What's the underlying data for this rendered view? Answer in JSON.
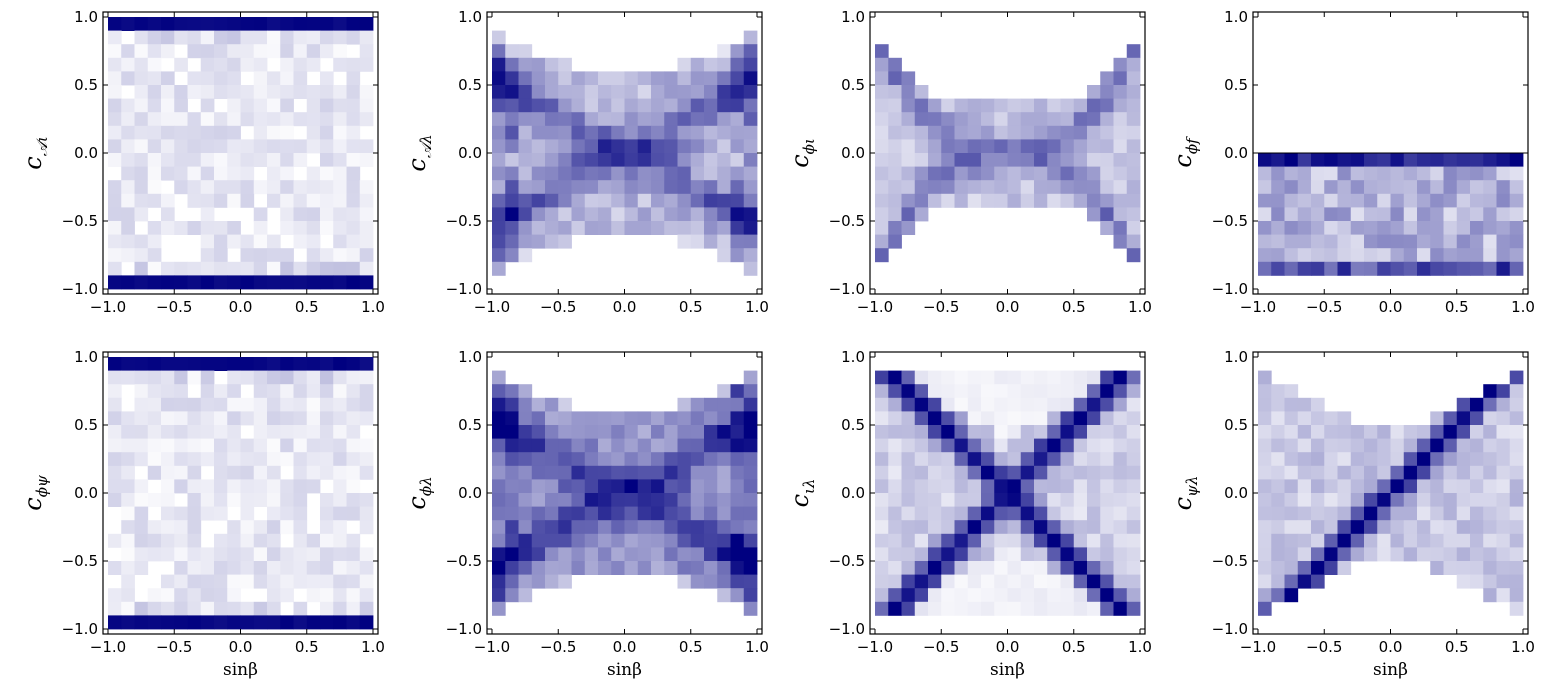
{
  "chart_data": {
    "type": "heatmap",
    "colormap": "white-to-navy",
    "x_range": [
      -1.0,
      1.0
    ],
    "y_range": [
      -1.0,
      1.0
    ],
    "bins": 20,
    "xticks": [
      "−1.0",
      "−0.5",
      "0.0",
      "0.5",
      "1.0"
    ],
    "yticks": [
      "1.0",
      "0.5",
      "0.0",
      "−0.5",
      "−1.0"
    ],
    "xlabel": "sinβ",
    "panels": [
      {
        "name": "c_A_iota",
        "ylabel": "c",
        "ylabel_sub": "𝒜ι",
        "pattern": "edges"
      },
      {
        "name": "c_A_lambda",
        "ylabel": "c",
        "ylabel_sub": "𝒜λ",
        "pattern": "bowtie"
      },
      {
        "name": "c_phi_iota",
        "ylabel": "c",
        "ylabel_sub": "ϕι",
        "pattern": "band"
      },
      {
        "name": "c_phi_f",
        "ylabel": "c",
        "ylabel_sub": "ϕf",
        "pattern": "lower"
      },
      {
        "name": "c_phi_psi",
        "ylabel": "c",
        "ylabel_sub": "ϕψ",
        "pattern": "edges"
      },
      {
        "name": "c_phi_lambda",
        "ylabel": "c",
        "ylabel_sub": "ϕλ",
        "pattern": "bowtie-wide"
      },
      {
        "name": "c_iota_lambda",
        "ylabel": "c",
        "ylabel_sub": "ιλ",
        "pattern": "cross"
      },
      {
        "name": "c_psi_lambda",
        "ylabel": "c",
        "ylabel_sub": "ψλ",
        "pattern": "diagonal"
      }
    ]
  }
}
